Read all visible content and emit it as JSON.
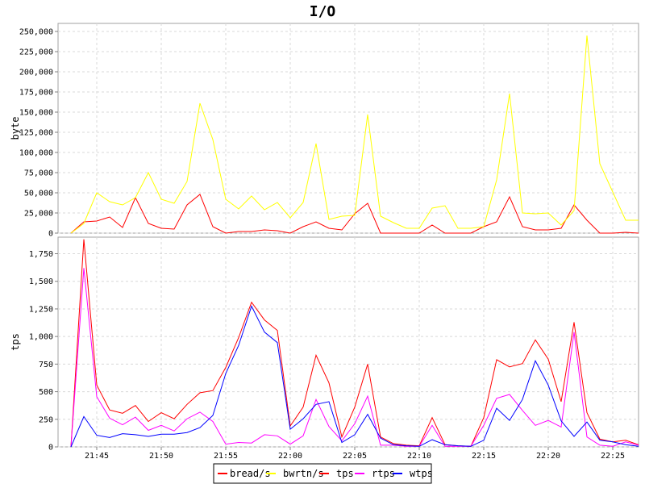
{
  "chart_data": {
    "type": "line",
    "title": "I/O",
    "x_ticks": [
      "21:45",
      "21:50",
      "21:55",
      "22:00",
      "22:05",
      "22:10",
      "22:15",
      "22:20",
      "22:25"
    ],
    "x": [
      "21:43",
      "21:44",
      "21:45",
      "21:46",
      "21:47",
      "21:48",
      "21:49",
      "21:50",
      "21:51",
      "21:52",
      "21:53",
      "21:54",
      "21:55",
      "21:56",
      "21:57",
      "21:58",
      "21:59",
      "22:00",
      "22:01",
      "22:02",
      "22:03",
      "22:04",
      "22:05",
      "22:06",
      "22:07",
      "22:08",
      "22:09",
      "22:10",
      "22:11",
      "22:12",
      "22:13",
      "22:14",
      "22:15",
      "22:16",
      "22:17",
      "22:18",
      "22:19",
      "22:20",
      "22:21",
      "22:22",
      "22:23",
      "22:24",
      "22:25",
      "22:26",
      "22:27"
    ],
    "legend": [
      "bread/s",
      "bwrtn/s",
      "tps",
      "rtps",
      "wtps"
    ],
    "legend_placement": "bottom-center",
    "grid": true,
    "panels": [
      {
        "ylabel": "byte",
        "ylim": [
          0,
          260000
        ],
        "yticks": [
          "0",
          "25,000",
          "50,000",
          "75,000",
          "100,000",
          "125,000",
          "150,000",
          "175,000",
          "200,000",
          "225,000",
          "250,000"
        ],
        "series": [
          {
            "name": "bread/s",
            "color": "#ff0000",
            "values": [
              0,
              14000,
              15000,
              20000,
              7000,
              44000,
              12000,
              6000,
              5000,
              35000,
              48000,
              8000,
              0,
              2000,
              2000,
              4000,
              3000,
              0,
              8000,
              14000,
              6000,
              4000,
              24000,
              37000,
              0,
              0,
              0,
              0,
              10000,
              0,
              0,
              0,
              8000,
              14000,
              45000,
              8000,
              4000,
              4000,
              6000,
              35000,
              16000,
              0,
              0,
              1000,
              0
            ]
          },
          {
            "name": "bwrtn/s",
            "color": "#ffff00",
            "values": [
              0,
              12000,
              50000,
              39000,
              35000,
              44000,
              75000,
              42000,
              37000,
              64000,
              161000,
              116000,
              42000,
              30000,
              46000,
              29000,
              38000,
              19000,
              38000,
              111000,
              17000,
              21000,
              22000,
              147000,
              21000,
              13000,
              6000,
              6000,
              31000,
              34000,
              6000,
              6000,
              8000,
              66000,
              173000,
              25000,
              24000,
              25000,
              10000,
              28000,
              245000,
              86000,
              51000,
              16000,
              16000
            ]
          }
        ]
      },
      {
        "ylabel": "tps",
        "ylim": [
          0,
          1900
        ],
        "yticks": [
          "0",
          "250",
          "500",
          "750",
          "1,000",
          "1,250",
          "1,500",
          "1,750"
        ],
        "series": [
          {
            "name": "tps",
            "color": "#ff0000",
            "values": [
              0,
              1880,
              560,
              335,
              305,
              375,
              230,
              310,
              255,
              385,
              490,
              510,
              720,
              990,
              1310,
              1150,
              1055,
              190,
              360,
              830,
              580,
              90,
              360,
              750,
              90,
              30,
              15,
              10,
              265,
              20,
              10,
              5,
              265,
              790,
              725,
              755,
              970,
              795,
              410,
              1130,
              310,
              70,
              45,
              60,
              20
            ]
          },
          {
            "name": "rtps",
            "color": "#ff00ff",
            "values": [
              0,
              1620,
              455,
              260,
              200,
              270,
              150,
              195,
              145,
              255,
              315,
              230,
              25,
              40,
              35,
              110,
              100,
              25,
              100,
              430,
              185,
              55,
              210,
              460,
              15,
              15,
              5,
              5,
              195,
              5,
              5,
              5,
              195,
              440,
              475,
              330,
              195,
              240,
              180,
              1040,
              90,
              15,
              5,
              45,
              15
            ]
          },
          {
            "name": "wtps",
            "color": "#0000ff",
            "values": [
              0,
              275,
              105,
              85,
              120,
              110,
              95,
              115,
              115,
              130,
              175,
              285,
              665,
              920,
              1275,
              1040,
              945,
              160,
              255,
              385,
              410,
              40,
              110,
              295,
              80,
              20,
              10,
              5,
              65,
              20,
              10,
              5,
              60,
              350,
              240,
              430,
              780,
              560,
              235,
              95,
              225,
              60,
              45,
              20,
              5
            ]
          }
        ]
      }
    ]
  }
}
